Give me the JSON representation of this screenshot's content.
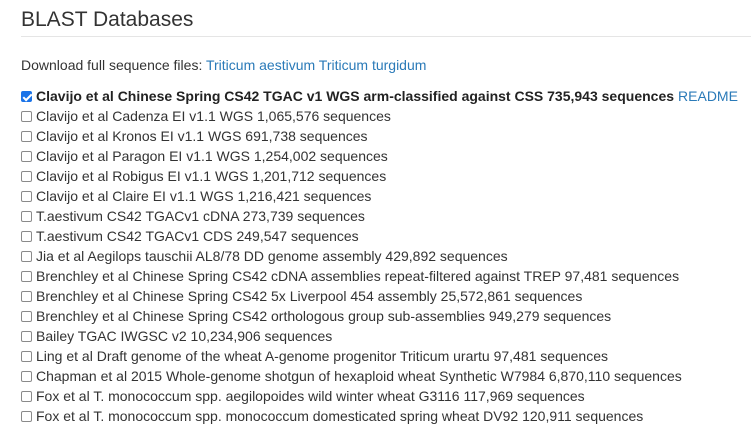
{
  "page": {
    "title": "BLAST Databases"
  },
  "download": {
    "label": "Download full sequence files:",
    "links": [
      "Triticum aestivum",
      "Triticum turgidum"
    ]
  },
  "databases": [
    {
      "label": "Clavijo et al Chinese Spring CS42 TGAC v1 WGS arm-classified against CSS 735,943 sequences",
      "checked": true,
      "readme": "README"
    },
    {
      "label": "Clavijo et al Cadenza EI v1.1 WGS 1,065,576 sequences",
      "checked": false
    },
    {
      "label": "Clavijo et al Kronos EI v1.1 WGS 691,738 sequences",
      "checked": false
    },
    {
      "label": "Clavijo et al Paragon EI v1.1 WGS 1,254,002 sequences",
      "checked": false
    },
    {
      "label": "Clavijo et al Robigus EI v1.1 WGS 1,201,712 sequences",
      "checked": false
    },
    {
      "label": "Clavijo et al Claire EI v1.1 WGS 1,216,421 sequences",
      "checked": false
    },
    {
      "label": "T.aestivum CS42 TGACv1 cDNA 273,739 sequences",
      "checked": false
    },
    {
      "label": "T.aestivum CS42 TGACv1 CDS 249,547 sequences",
      "checked": false
    },
    {
      "label": "Jia et al Aegilops tauschii AL8/78 DD genome assembly 429,892 sequences",
      "checked": false
    },
    {
      "label": "Brenchley et al Chinese Spring CS42 cDNA assemblies repeat-filtered against TREP 97,481 sequences",
      "checked": false
    },
    {
      "label": "Brenchley et al Chinese Spring CS42 5x Liverpool 454 assembly 25,572,861 sequences",
      "checked": false
    },
    {
      "label": "Brenchley et al Chinese Spring CS42 orthologous group sub-assemblies 949,279 sequences",
      "checked": false
    },
    {
      "label": "Bailey TGAC IWGSC v2 10,234,906 sequences",
      "checked": false
    },
    {
      "label": "Ling et al Draft genome of the wheat A-genome progenitor Triticum urartu 97,481 sequences",
      "checked": false
    },
    {
      "label": "Chapman et al 2015 Whole-genome shotgun of hexaploid wheat Synthetic W7984 6,870,110 sequences",
      "checked": false
    },
    {
      "label": "Fox et al T. monococcum spp. aegilopoides wild winter wheat G3116 117,969 sequences",
      "checked": false
    },
    {
      "label": "Fox et al T. monococcum spp. monococcum domesticated spring wheat DV92 120,911 sequences",
      "checked": false
    }
  ],
  "colors": {
    "link": "#2a7ab8",
    "checkbox_checked": "#1a73e8",
    "text": "#333333"
  }
}
